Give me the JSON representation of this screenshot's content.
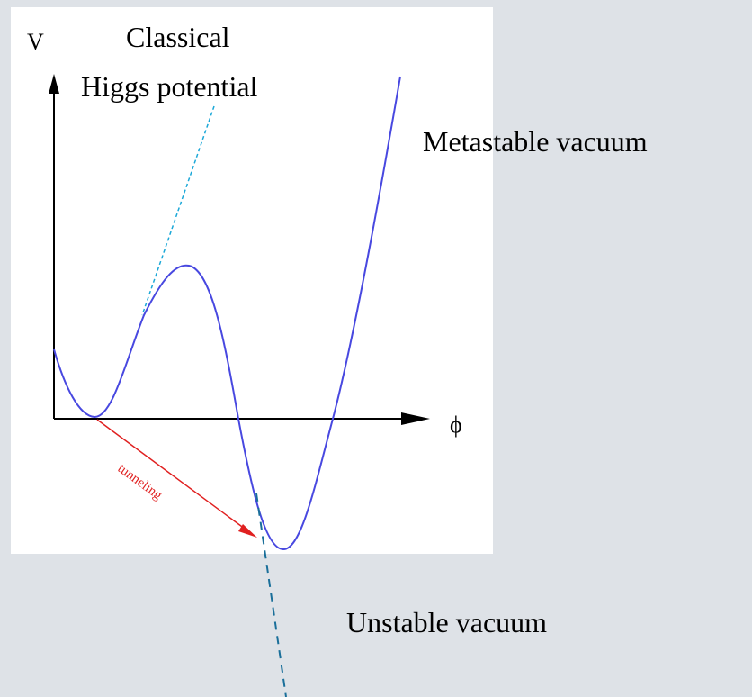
{
  "axes": {
    "y_label": "V",
    "x_label": "ϕ"
  },
  "annotations": {
    "classical_line1": "Classical",
    "classical_line2": "Higgs potential",
    "metastable": "Metastable vacuum",
    "tunneling": "tunneling",
    "unstable": "Unstable vacuum"
  }
}
